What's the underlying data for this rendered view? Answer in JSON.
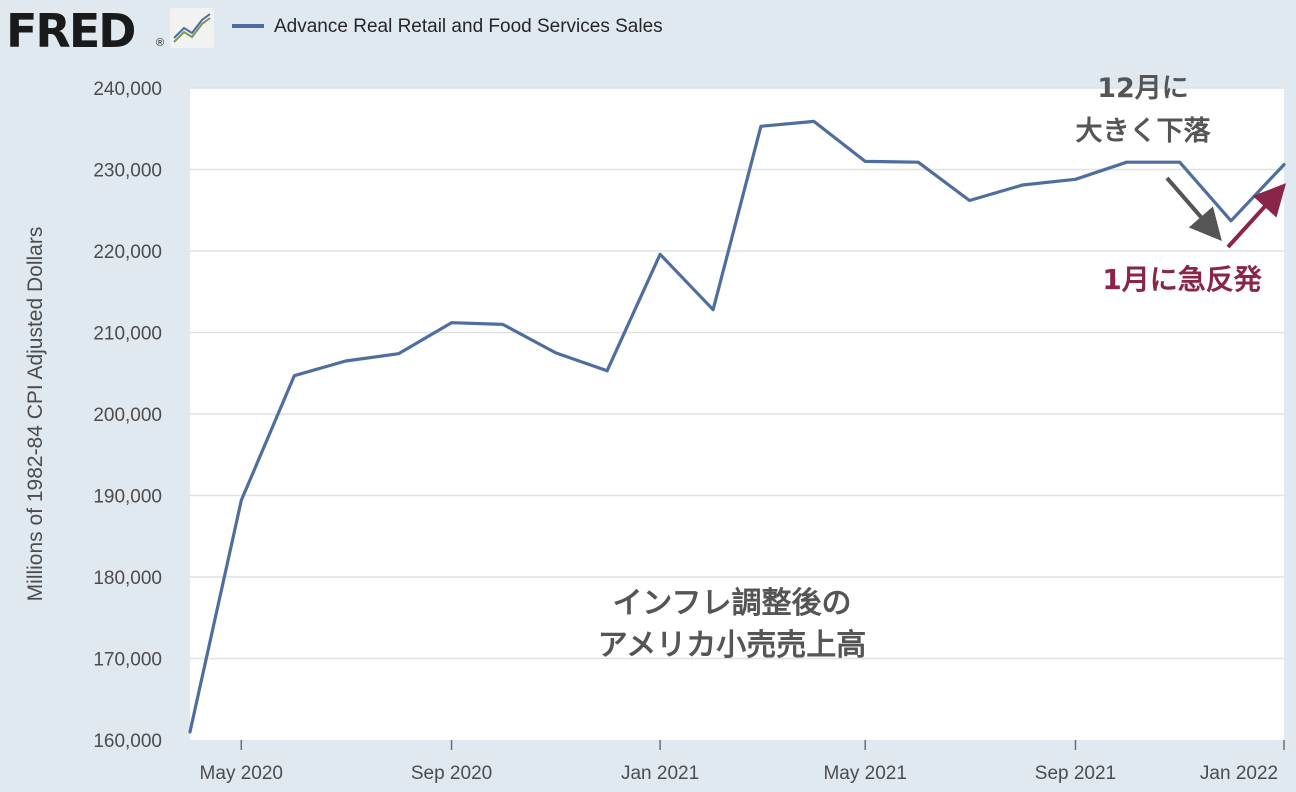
{
  "header": {
    "logo_text": "FRED",
    "logo_registered": "®",
    "logo_icon": "line-chart-icon",
    "legend_label": "Advance Real Retail and Food Services Sales"
  },
  "colors": {
    "background": "#e1e9f0",
    "plot_background": "#ffffff",
    "series_line": "#4e6e9f",
    "annotation_gray": "#555555",
    "annotation_red": "#8b2449"
  },
  "chart_data": {
    "type": "line",
    "title": "",
    "xlabel": "",
    "ylabel": "Millions of 1982-84 CPI Adjusted Dollars",
    "ylim": [
      160000,
      240000
    ],
    "yticks": [
      160000,
      170000,
      180000,
      190000,
      200000,
      210000,
      220000,
      230000,
      240000
    ],
    "ytick_labels": [
      "160,000",
      "170,000",
      "180,000",
      "190,000",
      "200,000",
      "210,000",
      "220,000",
      "230,000",
      "240,000"
    ],
    "xlim": [
      "2020-04-01",
      "2022-01-01"
    ],
    "xticks": [
      "2020-05-01",
      "2020-09-01",
      "2021-01-01",
      "2021-05-01",
      "2021-09-01",
      "2022-01-01"
    ],
    "xtick_labels": [
      "May 2020",
      "Sep 2020",
      "Jan 2021",
      "May 2021",
      "Sep 2021",
      "Jan 2022"
    ],
    "grid": true,
    "legend_position": "top-left",
    "series": [
      {
        "name": "Advance Real Retail and Food Services Sales",
        "x": [
          "2020-04-01",
          "2020-05-01",
          "2020-06-01",
          "2020-07-01",
          "2020-08-01",
          "2020-09-01",
          "2020-10-01",
          "2020-11-01",
          "2020-12-01",
          "2021-01-01",
          "2021-02-01",
          "2021-03-01",
          "2021-04-01",
          "2021-05-01",
          "2021-06-01",
          "2021-07-01",
          "2021-08-01",
          "2021-09-01",
          "2021-10-01",
          "2021-11-01",
          "2021-12-01",
          "2022-01-01"
        ],
        "values": [
          161000,
          189400,
          204700,
          206500,
          207400,
          211200,
          211000,
          207500,
          205300,
          219600,
          212800,
          235300,
          235900,
          231000,
          230900,
          226200,
          228100,
          228800,
          230900,
          230900,
          223700,
          230600
        ]
      }
    ],
    "annotations": [
      {
        "lines": [
          "12月に",
          "大きく下落"
        ],
        "color": "annotation_gray"
      },
      {
        "lines": [
          "1月に急反発"
        ],
        "color": "annotation_red"
      },
      {
        "lines": [
          "インフレ調整後の",
          "アメリカ小売売上高"
        ],
        "color": "annotation_gray"
      }
    ]
  }
}
